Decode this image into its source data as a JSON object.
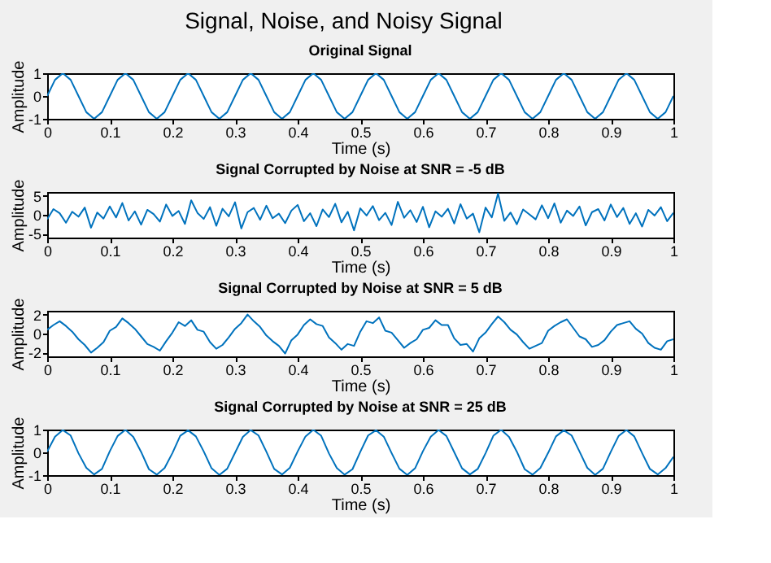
{
  "chart_data": [
    {
      "type": "line",
      "title": "Original Signal",
      "xlabel": "Time (s)",
      "ylabel": "Amplitude",
      "annotations": [
        "Signal, Noise, and Noisy Signal"
      ],
      "color": "#0072bd",
      "x": [
        0,
        0.0125,
        0.025,
        0.0375,
        0.05,
        0.0625,
        0.075,
        0.0875,
        0.1,
        0.1125,
        0.125,
        0.1375,
        0.15,
        0.1625,
        0.175,
        0.1875,
        0.2,
        0.2125,
        0.225,
        0.2375,
        0.25,
        0.2625,
        0.275,
        0.2875,
        0.3,
        0.3125,
        0.325,
        0.3375,
        0.35,
        0.3625,
        0.375,
        0.3875,
        0.4,
        0.4125,
        0.425,
        0.4375,
        0.45,
        0.4625,
        0.475,
        0.4875,
        0.5,
        0.5125,
        0.525,
        0.5375,
        0.55,
        0.5625,
        0.575,
        0.5875,
        0.6,
        0.6125,
        0.625,
        0.6375,
        0.65,
        0.6625,
        0.675,
        0.6875,
        0.7,
        0.7125,
        0.725,
        0.7375,
        0.75,
        0.7625,
        0.775,
        0.7875,
        0.8,
        0.8125,
        0.825,
        0.8375,
        0.85,
        0.8625,
        0.875,
        0.8875,
        0.9,
        0.9125,
        0.925,
        0.9375,
        0.95,
        0.9625,
        0.975,
        0.9875,
        1
      ],
      "values": [
        0,
        0.71,
        1,
        0.71,
        0,
        -0.71,
        -1,
        -0.71,
        0,
        0.71,
        1,
        0.71,
        0,
        -0.71,
        -1,
        -0.71,
        0,
        0.71,
        1,
        0.71,
        0,
        -0.71,
        -1,
        -0.71,
        0,
        0.71,
        1,
        0.71,
        0,
        -0.71,
        -1,
        -0.71,
        0,
        0.71,
        1,
        0.71,
        0,
        -0.71,
        -1,
        -0.71,
        0,
        0.71,
        1,
        0.71,
        0,
        -0.71,
        -1,
        -0.71,
        0,
        0.71,
        1,
        0.71,
        0,
        -0.71,
        -1,
        -0.71,
        0,
        0.71,
        1,
        0.71,
        0,
        -0.71,
        -1,
        -0.71,
        0,
        0.71,
        1,
        0.71,
        0,
        -0.71,
        -1,
        -0.71,
        0,
        0.71,
        1,
        0.71,
        0,
        -0.71,
        -1,
        -0.71,
        0
      ],
      "xlim": [
        0,
        1
      ],
      "ylim": [
        -1,
        1
      ],
      "xticks": [
        0,
        0.1,
        0.2,
        0.3,
        0.4,
        0.5,
        0.6,
        0.7,
        0.8,
        0.9,
        1
      ],
      "yticks": [
        -1,
        0,
        1
      ]
    },
    {
      "type": "line",
      "title": "Signal Corrupted by Noise at SNR = -5 dB",
      "xlabel": "Time (s)",
      "ylabel": "Amplitude",
      "color": "#0072bd",
      "x": [
        0,
        0.01,
        0.02,
        0.03,
        0.04,
        0.05,
        0.06,
        0.07,
        0.08,
        0.09,
        0.1,
        0.11,
        0.12,
        0.13,
        0.14,
        0.15,
        0.16,
        0.17,
        0.18,
        0.19,
        0.2,
        0.21,
        0.22,
        0.23,
        0.24,
        0.25,
        0.26,
        0.27,
        0.28,
        0.29,
        0.3,
        0.31,
        0.32,
        0.33,
        0.34,
        0.35,
        0.36,
        0.37,
        0.38,
        0.39,
        0.4,
        0.41,
        0.42,
        0.43,
        0.44,
        0.45,
        0.46,
        0.47,
        0.48,
        0.49,
        0.5,
        0.51,
        0.52,
        0.53,
        0.54,
        0.55,
        0.56,
        0.57,
        0.58,
        0.59,
        0.6,
        0.61,
        0.62,
        0.63,
        0.64,
        0.65,
        0.66,
        0.67,
        0.68,
        0.69,
        0.7,
        0.71,
        0.72,
        0.73,
        0.74,
        0.75,
        0.76,
        0.77,
        0.78,
        0.79,
        0.8,
        0.81,
        0.82,
        0.83,
        0.84,
        0.85,
        0.86,
        0.87,
        0.88,
        0.89,
        0.9,
        0.91,
        0.92,
        0.93,
        0.94,
        0.95,
        0.96,
        0.97,
        0.98,
        0.99,
        1
      ],
      "values": [
        -1.2,
        1.5,
        0.4,
        -2.1,
        0.8,
        -0.5,
        1.9,
        -3.4,
        0.6,
        -1.0,
        2.2,
        -0.7,
        3.1,
        -1.5,
        0.9,
        -2.6,
        1.3,
        0.2,
        -1.8,
        2.7,
        -0.3,
        1.0,
        -2.4,
        3.8,
        0.5,
        -1.1,
        2.0,
        -2.9,
        1.6,
        -0.4,
        3.3,
        -3.6,
        0.7,
        1.8,
        -1.3,
        2.4,
        -0.9,
        0.3,
        -2.2,
        1.1,
        2.6,
        -1.7,
        0.4,
        -3.0,
        1.4,
        -0.6,
        2.9,
        -2.0,
        0.8,
        -4.1,
        1.7,
        -0.2,
        2.3,
        -1.4,
        0.5,
        -2.7,
        3.4,
        -0.8,
        1.2,
        -1.9,
        2.1,
        -3.3,
        0.9,
        -0.5,
        1.6,
        -2.3,
        2.8,
        -1.0,
        0.3,
        -4.6,
        1.9,
        -0.7,
        5.6,
        -1.6,
        0.6,
        -2.5,
        1.4,
        0.1,
        -1.2,
        2.5,
        -0.9,
        3.0,
        -2.1,
        1.1,
        -0.3,
        2.2,
        -2.8,
        0.7,
        1.5,
        -1.5,
        2.7,
        -0.6,
        1.8,
        -2.4,
        0.4,
        -3.1,
        1.3,
        -0.2,
        2.0,
        -1.7,
        0.5
      ],
      "xlim": [
        0,
        1
      ],
      "ylim": [
        -6,
        6
      ],
      "xticks": [
        0,
        0.1,
        0.2,
        0.3,
        0.4,
        0.5,
        0.6,
        0.7,
        0.8,
        0.9,
        1
      ],
      "yticks": [
        -5,
        0,
        5
      ]
    },
    {
      "type": "line",
      "title": "Signal Corrupted by Noise at SNR = 5 dB",
      "xlabel": "Time (s)",
      "ylabel": "Amplitude",
      "color": "#0072bd",
      "x": [
        0,
        0.01,
        0.02,
        0.03,
        0.04,
        0.05,
        0.06,
        0.07,
        0.08,
        0.09,
        0.1,
        0.11,
        0.12,
        0.13,
        0.14,
        0.15,
        0.16,
        0.17,
        0.18,
        0.19,
        0.2,
        0.21,
        0.22,
        0.23,
        0.24,
        0.25,
        0.26,
        0.27,
        0.28,
        0.29,
        0.3,
        0.31,
        0.32,
        0.33,
        0.34,
        0.35,
        0.36,
        0.37,
        0.38,
        0.39,
        0.4,
        0.41,
        0.42,
        0.43,
        0.44,
        0.45,
        0.46,
        0.47,
        0.48,
        0.49,
        0.5,
        0.51,
        0.52,
        0.53,
        0.54,
        0.55,
        0.56,
        0.57,
        0.58,
        0.59,
        0.6,
        0.61,
        0.62,
        0.63,
        0.64,
        0.65,
        0.66,
        0.67,
        0.68,
        0.69,
        0.7,
        0.71,
        0.72,
        0.73,
        0.74,
        0.75,
        0.76,
        0.77,
        0.78,
        0.79,
        0.8,
        0.81,
        0.82,
        0.83,
        0.84,
        0.85,
        0.86,
        0.87,
        0.88,
        0.89,
        0.9,
        0.91,
        0.92,
        0.93,
        0.94,
        0.95,
        0.96,
        0.97,
        0.98,
        0.99,
        1
      ],
      "values": [
        0.4,
        0.9,
        1.3,
        0.8,
        0.2,
        -0.6,
        -1.2,
        -2.0,
        -1.5,
        -0.9,
        0.3,
        0.7,
        1.6,
        1.1,
        0.5,
        -0.3,
        -1.1,
        -1.4,
        -1.8,
        -0.8,
        0.1,
        1.2,
        0.8,
        1.4,
        0.4,
        0.2,
        -0.9,
        -1.6,
        -1.2,
        -0.4,
        0.5,
        1.1,
        2.0,
        1.3,
        0.7,
        -0.2,
        -0.8,
        -1.3,
        -2.1,
        -0.7,
        -0.1,
        0.9,
        1.5,
        1.0,
        0.8,
        -0.4,
        -1.0,
        -1.7,
        -1.1,
        -1.3,
        0.2,
        1.3,
        1.1,
        1.7,
        0.3,
        0.1,
        -0.7,
        -1.5,
        -1.0,
        -0.6,
        0.4,
        0.6,
        1.4,
        0.9,
        0.9,
        -0.5,
        -1.2,
        -1.1,
        -1.9,
        -0.5,
        0.1,
        1.0,
        1.8,
        1.2,
        0.4,
        -0.1,
        -0.9,
        -1.6,
        -1.3,
        -1.0,
        0.3,
        0.8,
        1.2,
        1.5,
        0.6,
        -0.3,
        -0.6,
        -1.4,
        -1.2,
        -0.7,
        0.2,
        0.9,
        1.1,
        1.3,
        0.5,
        0.0,
        -1.0,
        -1.5,
        -1.7,
        -0.8,
        -0.6
      ],
      "xlim": [
        0,
        1
      ],
      "ylim": [
        -2.4,
        2.4
      ],
      "xticks": [
        0,
        0.1,
        0.2,
        0.3,
        0.4,
        0.5,
        0.6,
        0.7,
        0.8,
        0.9,
        1
      ],
      "yticks": [
        -2,
        0,
        2
      ]
    },
    {
      "type": "line",
      "title": "Signal Corrupted by Noise at SNR = 25 dB",
      "xlabel": "Time (s)",
      "ylabel": "Amplitude",
      "color": "#0072bd",
      "x": [
        0,
        0.0125,
        0.025,
        0.0375,
        0.05,
        0.0625,
        0.075,
        0.0875,
        0.1,
        0.1125,
        0.125,
        0.1375,
        0.15,
        0.1625,
        0.175,
        0.1875,
        0.2,
        0.2125,
        0.225,
        0.2375,
        0.25,
        0.2625,
        0.275,
        0.2875,
        0.3,
        0.3125,
        0.325,
        0.3375,
        0.35,
        0.3625,
        0.375,
        0.3875,
        0.4,
        0.4125,
        0.425,
        0.4375,
        0.45,
        0.4625,
        0.475,
        0.4875,
        0.5,
        0.5125,
        0.525,
        0.5375,
        0.55,
        0.5625,
        0.575,
        0.5875,
        0.6,
        0.6125,
        0.625,
        0.6375,
        0.65,
        0.6625,
        0.675,
        0.6875,
        0.7,
        0.7125,
        0.725,
        0.7375,
        0.75,
        0.7625,
        0.775,
        0.7875,
        0.8,
        0.8125,
        0.825,
        0.8375,
        0.85,
        0.8625,
        0.875,
        0.8875,
        0.9,
        0.9125,
        0.925,
        0.9375,
        0.95,
        0.9625,
        0.975,
        0.9875,
        1
      ],
      "values": [
        0.03,
        0.69,
        0.98,
        0.74,
        -0.04,
        -0.68,
        -0.97,
        -0.73,
        0.05,
        0.72,
        0.99,
        0.68,
        0.02,
        -0.74,
        -0.98,
        -0.69,
        -0.03,
        0.73,
        0.97,
        0.7,
        0.04,
        -0.7,
        -0.99,
        -0.72,
        -0.02,
        0.68,
        0.98,
        0.74,
        0.03,
        -0.73,
        -0.97,
        -0.68,
        0.04,
        0.7,
        0.99,
        0.73,
        -0.05,
        -0.69,
        -0.98,
        -0.74,
        0.02,
        0.74,
        0.97,
        0.69,
        -0.03,
        -0.72,
        -0.99,
        -0.7,
        0.05,
        0.69,
        0.98,
        0.72,
        0.01,
        -0.7,
        -0.97,
        -0.73,
        -0.04,
        0.73,
        0.99,
        0.68,
        0.03,
        -0.74,
        -0.98,
        -0.69,
        -0.02,
        0.7,
        0.97,
        0.74,
        0.04,
        -0.68,
        -0.99,
        -0.72,
        0.02,
        0.72,
        0.98,
        0.7,
        -0.03,
        -0.73,
        -0.97,
        -0.69,
        -0.2
      ],
      "xlim": [
        0,
        1
      ],
      "ylim": [
        -1,
        1
      ],
      "xticks": [
        0,
        0.1,
        0.2,
        0.3,
        0.4,
        0.5,
        0.6,
        0.7,
        0.8,
        0.9,
        1
      ],
      "yticks": [
        -1,
        0,
        1
      ]
    }
  ]
}
